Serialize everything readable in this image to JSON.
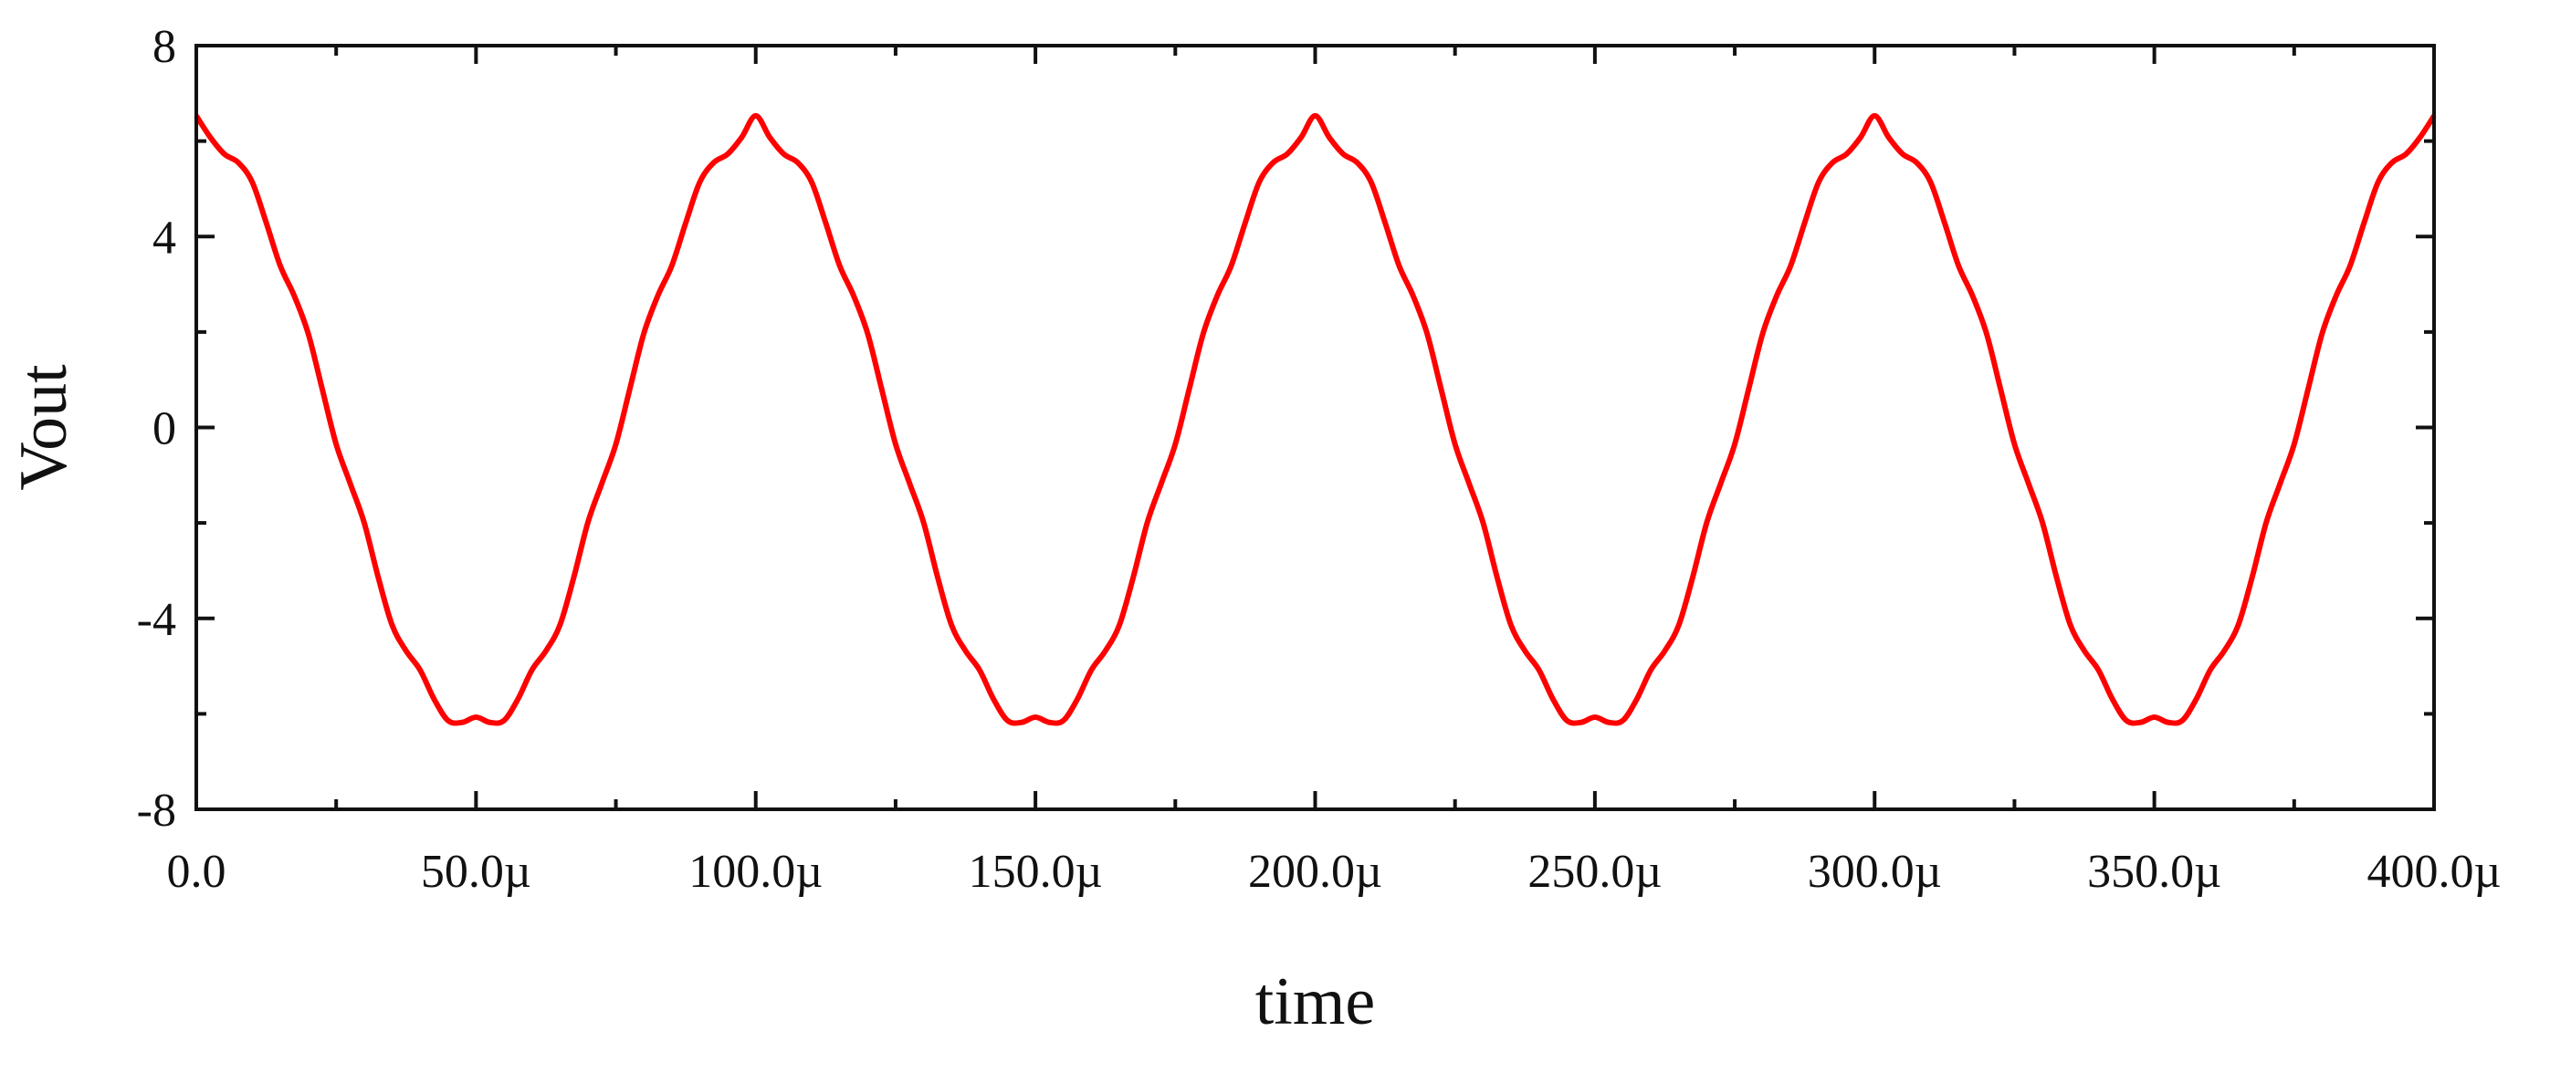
{
  "chart_data": {
    "type": "line",
    "title": "",
    "xlabel": "time",
    "ylabel": "Vout",
    "xlim": [
      0,
      400
    ],
    "ylim": [
      -8,
      8
    ],
    "x_unit": "µs",
    "x_ticks": [
      0,
      50,
      100,
      150,
      200,
      250,
      300,
      350,
      400
    ],
    "x_tick_labels": [
      "0.0",
      "50.0µ",
      "100.0µ",
      "150.0µ",
      "200.0µ",
      "250.0µ",
      "300.0µ",
      "350.0µ",
      "400.0µ"
    ],
    "x_minor_ticks": [
      25,
      75,
      125,
      175,
      225,
      275,
      325,
      375
    ],
    "y_ticks": [
      -8,
      -4,
      0,
      4,
      8
    ],
    "y_tick_labels": [
      "-8",
      "-4",
      "0",
      "4",
      "8"
    ],
    "y_minor_ticks": [
      -6,
      -2,
      2,
      6
    ],
    "grid": false,
    "legend": "none",
    "series": [
      {
        "color": "#ff0000",
        "x": [
          0,
          2.5,
          5,
          7.5,
          10,
          12.5,
          15,
          17.5,
          20,
          22.5,
          25,
          27.5,
          30,
          32.5,
          35,
          37.5,
          40,
          42.5,
          45,
          47.5,
          50,
          52.5,
          55,
          57.5,
          60,
          62.5,
          65,
          67.5,
          70,
          72.5,
          75,
          77.5,
          80,
          82.5,
          85,
          87.5,
          90,
          92.5,
          95,
          97.5,
          100,
          102.5,
          105,
          107.5,
          110,
          112.5,
          115,
          117.5,
          120,
          122.5,
          125,
          127.5,
          130,
          132.5,
          135,
          137.5,
          140,
          142.5,
          145,
          147.5,
          150,
          152.5,
          155,
          157.5,
          160,
          162.5,
          165,
          167.5,
          170,
          172.5,
          175,
          177.5,
          180,
          182.5,
          185,
          187.5,
          190,
          192.5,
          195,
          197.5,
          200,
          202.5,
          205,
          207.5,
          210,
          212.5,
          215,
          217.5,
          220,
          222.5,
          225,
          227.5,
          230,
          232.5,
          235,
          237.5,
          240,
          242.5,
          245,
          247.5,
          250,
          252.5,
          255,
          257.5,
          260,
          262.5,
          265,
          267.5,
          270,
          272.5,
          275,
          277.5,
          280,
          282.5,
          285,
          287.5,
          290,
          292.5,
          295,
          297.5,
          300,
          302.5,
          305,
          307.5,
          310,
          312.5,
          315,
          317.5,
          320,
          322.5,
          325,
          327.5,
          330,
          332.5,
          335,
          337.5,
          340,
          342.5,
          345,
          347.5,
          350,
          352.5,
          355,
          357.5,
          360,
          362.5,
          365,
          367.5,
          370,
          372.5,
          375,
          377.5,
          380,
          382.5,
          385,
          387.5,
          390,
          392.5,
          395,
          397.5,
          400
        ],
        "y": [
          6.53,
          6.08,
          5.73,
          5.55,
          5.14,
          4.29,
          3.39,
          2.76,
          1.97,
          0.81,
          -0.35,
          -1.17,
          -1.99,
          -3.13,
          -4.14,
          -4.68,
          -5.08,
          -5.69,
          -6.14,
          -6.18,
          -6.07,
          -6.18,
          -6.14,
          -5.69,
          -5.08,
          -4.68,
          -4.14,
          -3.13,
          -1.99,
          -1.17,
          -0.35,
          0.81,
          1.97,
          2.76,
          3.39,
          4.29,
          5.14,
          5.55,
          5.73,
          6.08,
          6.53,
          6.08,
          5.73,
          5.55,
          5.14,
          4.29,
          3.39,
          2.76,
          1.97,
          0.81,
          -0.35,
          -1.17,
          -1.99,
          -3.13,
          -4.14,
          -4.68,
          -5.08,
          -5.69,
          -6.14,
          -6.18,
          -6.07,
          -6.18,
          -6.14,
          -5.69,
          -5.08,
          -4.68,
          -4.14,
          -3.13,
          -1.99,
          -1.17,
          -0.35,
          0.81,
          1.97,
          2.76,
          3.39,
          4.29,
          5.14,
          5.55,
          5.73,
          6.08,
          6.53,
          6.08,
          5.73,
          5.55,
          5.14,
          4.29,
          3.39,
          2.76,
          1.97,
          0.81,
          -0.35,
          -1.17,
          -1.99,
          -3.13,
          -4.14,
          -4.68,
          -5.08,
          -5.69,
          -6.14,
          -6.18,
          -6.07,
          -6.18,
          -6.14,
          -5.69,
          -5.08,
          -4.68,
          -4.14,
          -3.13,
          -1.99,
          -1.17,
          -0.35,
          0.81,
          1.97,
          2.76,
          3.39,
          4.29,
          5.14,
          5.55,
          5.73,
          6.08,
          6.53,
          6.08,
          5.73,
          5.55,
          5.14,
          4.29,
          3.39,
          2.76,
          1.97,
          0.81,
          -0.35,
          -1.17,
          -1.99,
          -3.13,
          -4.14,
          -4.68,
          -5.08,
          -5.69,
          -6.14,
          -6.18,
          -6.07,
          -6.18,
          -6.14,
          -5.69,
          -5.08,
          -4.68,
          -4.14,
          -3.13,
          -1.99,
          -1.17,
          -0.35,
          0.81,
          1.97,
          2.76,
          3.39,
          4.29,
          5.14,
          5.55,
          5.73,
          6.08,
          6.53
        ]
      }
    ]
  }
}
